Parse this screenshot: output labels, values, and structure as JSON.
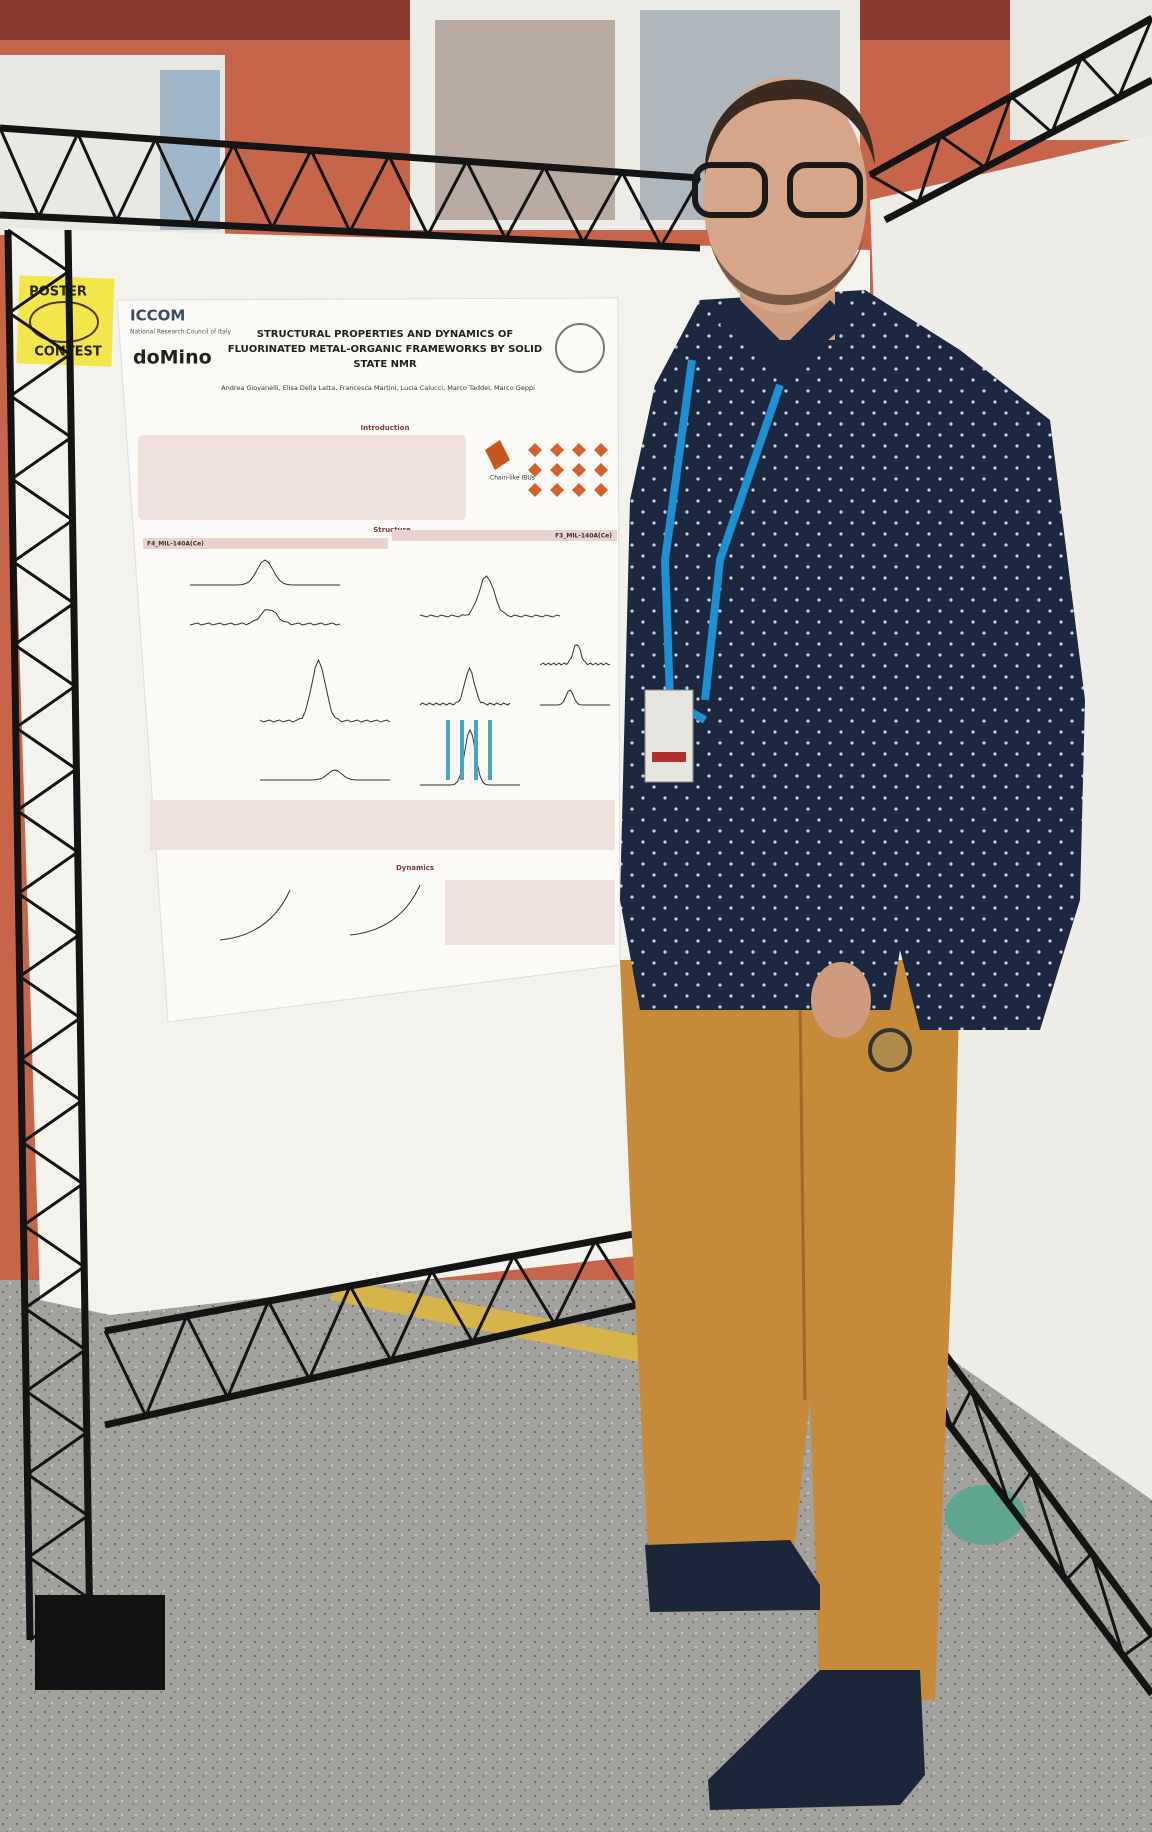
{
  "sticker": {
    "line1": "POSTER",
    "line2": "CONTEST"
  },
  "poster": {
    "logos": {
      "iccom": "ICCOM",
      "iccom_subtitle": "National Research Council of Italy",
      "domino": "doMino"
    },
    "title_lines": [
      "STRUCTURAL PROPERTIES AND DYNAMICS OF",
      "FLUORINATED METAL-ORGANIC FRAMEWORKS BY SOLID",
      "STATE NMR"
    ],
    "authors": "Andrea Giovanelli, Elisa Della Latta, Francesca Martini, Lucia Calucci, Marco Taddei, Marco Geppi",
    "sections": {
      "introduction": "Introduction",
      "structure": "Structure",
      "dynamics": "Dynamics"
    },
    "labels": {
      "left_panel": "F4_MIL-140A(Ce)",
      "right_panel": "F3_MIL-140A(Ce)",
      "chain": "Chain-like IBUs"
    }
  }
}
